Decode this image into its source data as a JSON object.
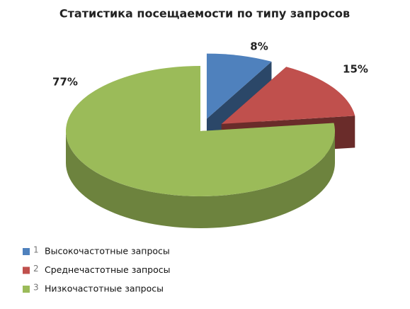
{
  "chart_data": {
    "type": "pie",
    "title": "Статистика посещаемости по типу запросов",
    "categories": [
      "Высокочастотные запросы",
      "Среднечастотные запросы",
      "Низкочастотные запросы"
    ],
    "legend_numbers": [
      1,
      2,
      3
    ],
    "values": [
      8,
      15,
      77
    ],
    "value_labels": [
      "8%",
      "15%",
      "77%"
    ],
    "colors": [
      "#4f81bd",
      "#c0504d",
      "#9bbb59"
    ],
    "explode": [
      true,
      true,
      false
    ],
    "legend": "bottom-left"
  }
}
